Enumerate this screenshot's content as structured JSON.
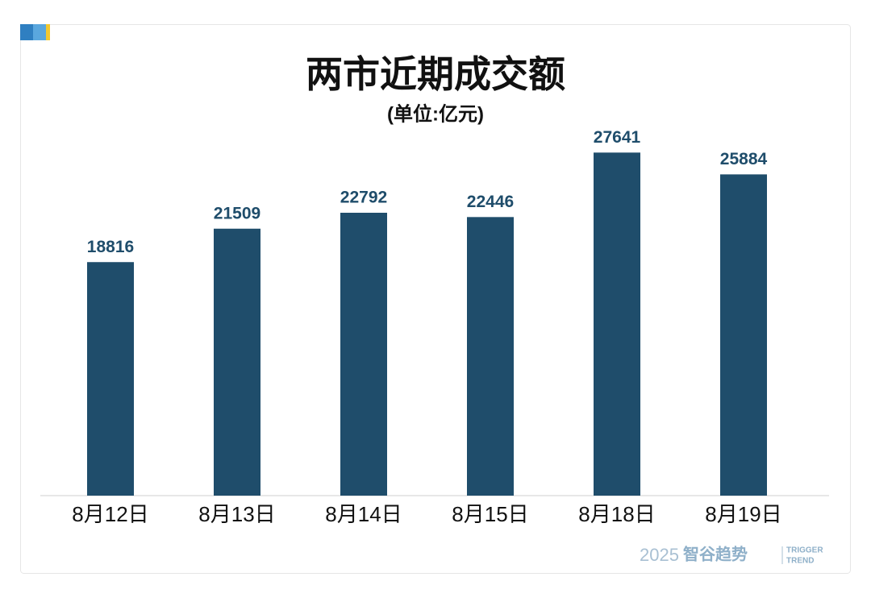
{
  "chart_data": {
    "type": "bar",
    "title": "两市近期成交额",
    "subtitle": "(单位:亿元)",
    "categories": [
      "8月12日",
      "8月13日",
      "8月14日",
      "8月15日",
      "8月18日",
      "8月19日"
    ],
    "values": [
      18816,
      21509,
      22792,
      22446,
      27641,
      25884
    ],
    "color": "#1f4d6b",
    "ylim": [
      0,
      30000
    ],
    "watermark": {
      "year": "2025",
      "brand": "智谷趋势",
      "english": [
        "TRIGGER",
        "TREND"
      ]
    }
  }
}
